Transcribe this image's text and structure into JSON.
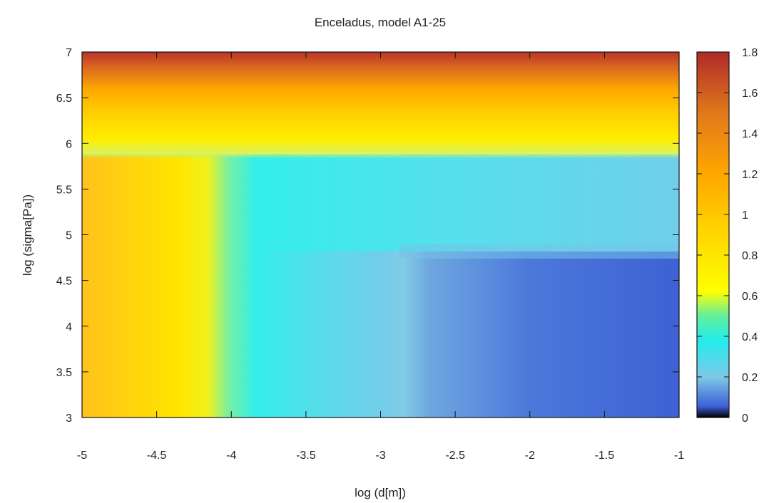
{
  "chart_data": {
    "type": "heatmap",
    "title": "Enceladus, model A1-25",
    "xlabel": "log (d[m])",
    "ylabel": "log (sigma[Pa])",
    "xlim": [
      -5,
      -1
    ],
    "ylim": [
      3,
      7
    ],
    "x_ticks": [
      "-5",
      "-4.5",
      "-4",
      "-3.5",
      "-3",
      "-2.5",
      "-2",
      "-1.5",
      "-1"
    ],
    "y_ticks": [
      "3",
      "3.5",
      "4",
      "4.5",
      "5",
      "5.5",
      "6",
      "6.5",
      "7"
    ],
    "colorbar": {
      "range": [
        0,
        1.8
      ],
      "ticks": [
        "0",
        "0.2",
        "0.4",
        "0.6",
        "0.8",
        "1",
        "1.2",
        "1.4",
        "1.6",
        "1.8"
      ],
      "colors": [
        {
          "value": 0.0,
          "color": "#000000"
        },
        {
          "value": 0.03,
          "color": "#3b5fd6"
        },
        {
          "value": 0.2,
          "color": "#7fc8e6"
        },
        {
          "value": 0.38,
          "color": "#22ecec"
        },
        {
          "value": 0.5,
          "color": "#66ef99"
        },
        {
          "value": 0.62,
          "color": "#ffff00"
        },
        {
          "value": 0.9,
          "color": "#ffd700"
        },
        {
          "value": 1.2,
          "color": "#ffa500"
        },
        {
          "value": 1.5,
          "color": "#e07a1a"
        },
        {
          "value": 1.8,
          "color": "#b02a28"
        }
      ]
    },
    "grid": false
  }
}
